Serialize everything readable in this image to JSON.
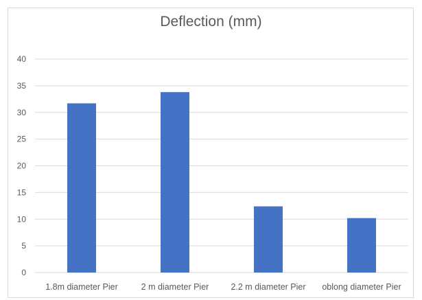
{
  "chart_data": {
    "type": "bar",
    "title": "Deflection (mm)",
    "xlabel": "",
    "ylabel": "",
    "categories": [
      "1.8m diameter Pier",
      "2 m diameter Pier",
      "2.2 m diameter Pier",
      "oblong diameter Pier"
    ],
    "values": [
      31.7,
      33.8,
      12.4,
      10.2
    ],
    "ylim": [
      0,
      40
    ],
    "yticks": [
      0,
      5,
      10,
      15,
      20,
      25,
      30,
      35,
      40
    ],
    "grid": true,
    "legend": "none",
    "bar_color": "#4472c4",
    "grid_color": "#d9d9d9",
    "text_color": "#595959"
  }
}
